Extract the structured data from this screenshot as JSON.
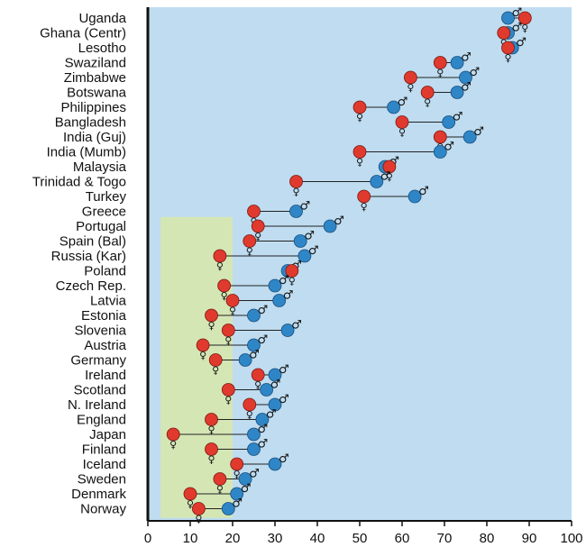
{
  "chart_data": {
    "type": "scatter",
    "title": "",
    "xlabel": "",
    "ylabel": "",
    "xlim": [
      0,
      100
    ],
    "x_ticks": [
      "0",
      "10",
      "20",
      "30",
      "40",
      "50",
      "60",
      "70",
      "80",
      "90",
      "100"
    ],
    "grid": false,
    "highlight_band": {
      "x_from": 3,
      "x_to": 20,
      "from_category": "Portugal",
      "to_category": "Norway"
    },
    "colors": {
      "plot_background": "#bfdcf0",
      "band": "#d5e6b5",
      "female": "#e03a2e",
      "male": "#2f86c6",
      "connector": "#222222",
      "axis": "#111111"
    },
    "symbols": {
      "female": "♀",
      "male": "♂"
    },
    "categories": [
      "Uganda",
      "Ghana (Centr)",
      "Lesotho",
      "Swaziland",
      "Zimbabwe",
      "Botswana",
      "Philippines",
      "Bangladesh",
      "India (Guj)",
      "India (Mumb)",
      "Malaysia",
      "Trinidad & Togo",
      "Turkey",
      "Greece",
      "Portugal",
      "Spain (Bal)",
      "Russia (Kar)",
      "Poland",
      "Czech Rep.",
      "Latvia",
      "Estonia",
      "Slovenia",
      "Austria",
      "Germany",
      "Ireland",
      "Scotland",
      "N. Ireland",
      "England",
      "Japan",
      "Finland",
      "Iceland",
      "Sweden",
      "Denmark",
      "Norway"
    ],
    "series": [
      {
        "key": "female",
        "values": [
          89,
          84,
          85,
          69,
          62,
          66,
          50,
          60,
          69,
          50,
          57,
          35,
          51,
          25,
          26,
          24,
          17,
          34,
          18,
          20,
          15,
          19,
          13,
          16,
          26,
          19,
          24,
          15,
          6,
          15,
          21,
          17,
          10,
          12
        ]
      },
      {
        "key": "male",
        "values": [
          85,
          85,
          86,
          73,
          75,
          73,
          58,
          71,
          76,
          69,
          56,
          54,
          63,
          35,
          43,
          36,
          37,
          33,
          30,
          31,
          25,
          33,
          25,
          23,
          30,
          28,
          30,
          27,
          25,
          25,
          30,
          23,
          21,
          19
        ]
      }
    ]
  }
}
